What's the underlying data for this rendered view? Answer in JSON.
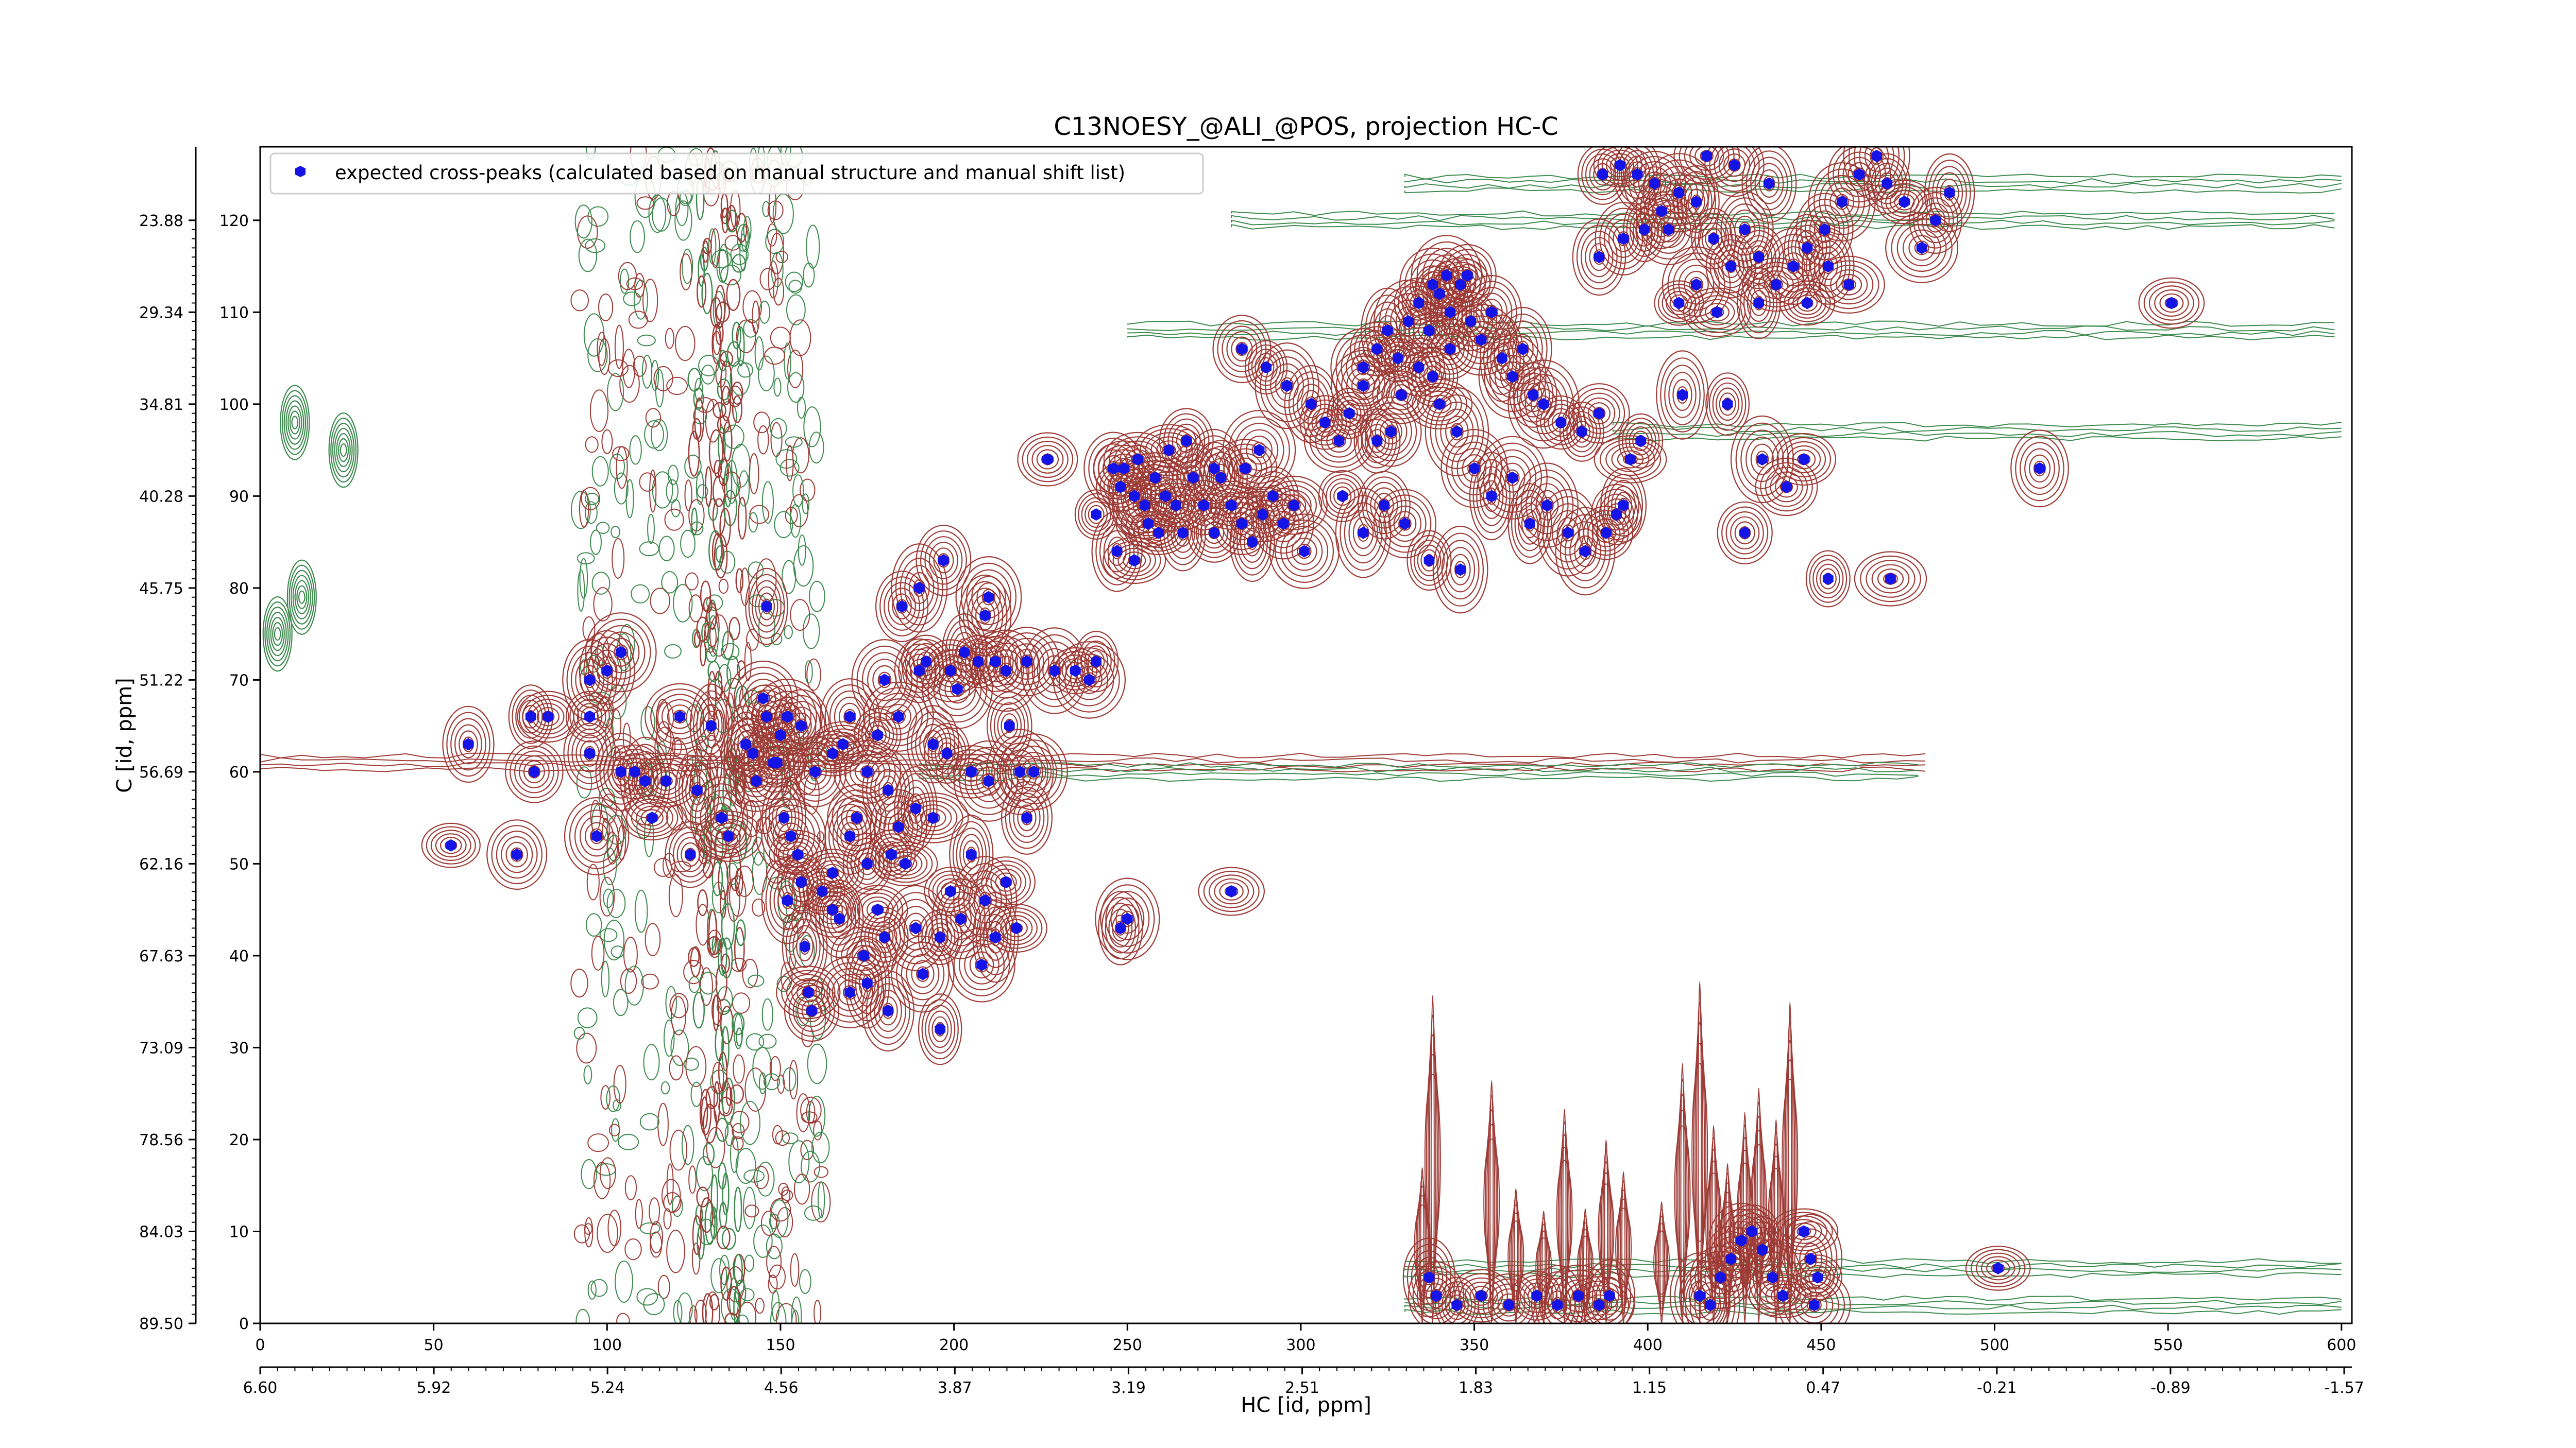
{
  "colors": {
    "positive_contours": "#9e3b36",
    "negative_contours": "#3d8a4e",
    "peaks": "#1414e6",
    "axes": "#000000",
    "background": "#ffffff"
  },
  "chart_data": {
    "type": "scatter",
    "title": "C13NOESY_@ALI_@POS, projection HC-C",
    "xlabel": "HC [id, ppm]",
    "ylabel": "C [id, ppm]",
    "xlim": [
      0,
      603
    ],
    "ylim": [
      0,
      128
    ],
    "grid": false,
    "legend_placement": "top-left",
    "x_ticks": [
      0,
      50,
      100,
      150,
      200,
      250,
      300,
      350,
      400,
      450,
      500,
      550,
      600
    ],
    "y_ticks": [
      0,
      10,
      20,
      30,
      40,
      50,
      60,
      70,
      80,
      90,
      100,
      110,
      120
    ],
    "x_ppm_ticks": [
      "6.60",
      "5.92",
      "5.24",
      "4.56",
      "3.87",
      "3.19",
      "2.51",
      "1.83",
      "1.15",
      "0.47",
      "-0.21",
      "-0.89",
      "-1.57"
    ],
    "y_ppm_ticks": [
      "89.50",
      "84.03",
      "78.56",
      "73.09",
      "67.63",
      "62.16",
      "56.69",
      "51.22",
      "45.75",
      "40.28",
      "34.81",
      "29.34",
      "23.88"
    ],
    "series": [
      {
        "name": "expected cross-peaks (calculated based on manual structure and manual shift list)",
        "marker": "hexagon",
        "points": [
          [
            55,
            52
          ],
          [
            74,
            51
          ],
          [
            78,
            66
          ],
          [
            95,
            66
          ],
          [
            104,
            60
          ],
          [
            97,
            53
          ],
          [
            104,
            73
          ],
          [
            111,
            59
          ],
          [
            117,
            59
          ],
          [
            121,
            66
          ],
          [
            124,
            51
          ],
          [
            126,
            58
          ],
          [
            130,
            65
          ],
          [
            133,
            55
          ],
          [
            135,
            53
          ],
          [
            140,
            63
          ],
          [
            142,
            62
          ],
          [
            143,
            59
          ],
          [
            145,
            68
          ],
          [
            146,
            66
          ],
          [
            149,
            61
          ],
          [
            150,
            64
          ],
          [
            151,
            55
          ],
          [
            153,
            53
          ],
          [
            155,
            51
          ],
          [
            156,
            48
          ],
          [
            152,
            46
          ],
          [
            157,
            41
          ],
          [
            158,
            36
          ],
          [
            159,
            34
          ],
          [
            162,
            47
          ],
          [
            165,
            49
          ],
          [
            167,
            44
          ],
          [
            170,
            53
          ],
          [
            172,
            55
          ],
          [
            174,
            40
          ],
          [
            175,
            37
          ],
          [
            178,
            45
          ],
          [
            180,
            42
          ],
          [
            182,
            51
          ],
          [
            184,
            54
          ],
          [
            186,
            50
          ],
          [
            189,
            43
          ],
          [
            191,
            38
          ],
          [
            194,
            55
          ],
          [
            196,
            42
          ],
          [
            199,
            47
          ],
          [
            202,
            44
          ],
          [
            205,
            51
          ],
          [
            209,
            46
          ],
          [
            212,
            42
          ],
          [
            215,
            48
          ],
          [
            218,
            43
          ],
          [
            221,
            55
          ],
          [
            223,
            60
          ],
          [
            219,
            60
          ],
          [
            216,
            65
          ],
          [
            210,
            59
          ],
          [
            205,
            60
          ],
          [
            198,
            62
          ],
          [
            194,
            63
          ],
          [
            184,
            66
          ],
          [
            178,
            64
          ],
          [
            170,
            66
          ],
          [
            165,
            62
          ],
          [
            160,
            60
          ],
          [
            156,
            65
          ],
          [
            152,
            66
          ],
          [
            148,
            61
          ],
          [
            168,
            63
          ],
          [
            175,
            60
          ],
          [
            181,
            58
          ],
          [
            189,
            56
          ],
          [
            175,
            50
          ],
          [
            165,
            45
          ],
          [
            170,
            36
          ],
          [
            181,
            34
          ],
          [
            196,
            32
          ],
          [
            208,
            39
          ],
          [
            180,
            70
          ],
          [
            190,
            71
          ],
          [
            199,
            71
          ],
          [
            203,
            73
          ],
          [
            207,
            72
          ],
          [
            212,
            72
          ],
          [
            215,
            71
          ],
          [
            221,
            72
          ],
          [
            229,
            71
          ],
          [
            235,
            71
          ],
          [
            239,
            70
          ],
          [
            241,
            72
          ],
          [
            201,
            69
          ],
          [
            192,
            72
          ],
          [
            185,
            78
          ],
          [
            209,
            77
          ],
          [
            210,
            79
          ],
          [
            197,
            83
          ],
          [
            227,
            94
          ],
          [
            241,
            88
          ],
          [
            246,
            93
          ],
          [
            248,
            91
          ],
          [
            252,
            90
          ],
          [
            256,
            87
          ],
          [
            258,
            92
          ],
          [
            261,
            90
          ],
          [
            264,
            89
          ],
          [
            266,
            86
          ],
          [
            269,
            92
          ],
          [
            272,
            89
          ],
          [
            275,
            86
          ],
          [
            277,
            92
          ],
          [
            280,
            89
          ],
          [
            283,
            87
          ],
          [
            286,
            85
          ],
          [
            289,
            88
          ],
          [
            292,
            90
          ],
          [
            295,
            87
          ],
          [
            298,
            89
          ],
          [
            301,
            84
          ],
          [
            288,
            95
          ],
          [
            284,
            93
          ],
          [
            275,
            93
          ],
          [
            267,
            96
          ],
          [
            262,
            95
          ],
          [
            253,
            94
          ],
          [
            249,
            93
          ],
          [
            259,
            86
          ],
          [
            255,
            89
          ],
          [
            247,
            84
          ],
          [
            252,
            83
          ],
          [
            283,
            106
          ],
          [
            290,
            104
          ],
          [
            296,
            102
          ],
          [
            303,
            100
          ],
          [
            307,
            98
          ],
          [
            311,
            96
          ],
          [
            314,
            99
          ],
          [
            318,
            104
          ],
          [
            322,
            106
          ],
          [
            325,
            108
          ],
          [
            328,
            105
          ],
          [
            331,
            109
          ],
          [
            334,
            111
          ],
          [
            337,
            108
          ],
          [
            340,
            112
          ],
          [
            343,
            110
          ],
          [
            346,
            113
          ],
          [
            349,
            109
          ],
          [
            352,
            107
          ],
          [
            355,
            110
          ],
          [
            358,
            105
          ],
          [
            361,
            103
          ],
          [
            364,
            106
          ],
          [
            367,
            101
          ],
          [
            370,
            100
          ],
          [
            375,
            98
          ],
          [
            381,
            97
          ],
          [
            386,
            99
          ],
          [
            334,
            104
          ],
          [
            329,
            101
          ],
          [
            326,
            97
          ],
          [
            322,
            96
          ],
          [
            318,
            102
          ],
          [
            340,
            100
          ],
          [
            345,
            97
          ],
          [
            350,
            93
          ],
          [
            355,
            90
          ],
          [
            361,
            92
          ],
          [
            366,
            87
          ],
          [
            371,
            89
          ],
          [
            377,
            86
          ],
          [
            382,
            84
          ],
          [
            388,
            86
          ],
          [
            391,
            88
          ],
          [
            393,
            89
          ],
          [
            346,
            82
          ],
          [
            337,
            83
          ],
          [
            330,
            87
          ],
          [
            324,
            89
          ],
          [
            318,
            86
          ],
          [
            312,
            90
          ],
          [
            338,
            113
          ],
          [
            342,
            114
          ],
          [
            348,
            114
          ],
          [
            343,
            106
          ],
          [
            338,
            103
          ],
          [
            386,
            116
          ],
          [
            393,
            118
          ],
          [
            399,
            119
          ],
          [
            404,
            121
          ],
          [
            409,
            123
          ],
          [
            414,
            122
          ],
          [
            419,
            118
          ],
          [
            424,
            115
          ],
          [
            428,
            119
          ],
          [
            432,
            116
          ],
          [
            437,
            113
          ],
          [
            442,
            115
          ],
          [
            446,
            117
          ],
          [
            451,
            119
          ],
          [
            456,
            122
          ],
          [
            461,
            125
          ],
          [
            466,
            127
          ],
          [
            469,
            124
          ],
          [
            474,
            122
          ],
          [
            479,
            117
          ],
          [
            483,
            120
          ],
          [
            487,
            123
          ],
          [
            409,
            111
          ],
          [
            414,
            113
          ],
          [
            420,
            110
          ],
          [
            432,
            111
          ],
          [
            446,
            111
          ],
          [
            458,
            113
          ],
          [
            406,
            119
          ],
          [
            402,
            124
          ],
          [
            397,
            125
          ],
          [
            392,
            126
          ],
          [
            387,
            125
          ],
          [
            452,
            115
          ],
          [
            435,
            124
          ],
          [
            425,
            126
          ],
          [
            417,
            127
          ],
          [
            395,
            94
          ],
          [
            398,
            96
          ],
          [
            410,
            101
          ],
          [
            423,
            100
          ],
          [
            428,
            86
          ],
          [
            440,
            91
          ],
          [
            445,
            94
          ],
          [
            433,
            94
          ],
          [
            95,
            62
          ],
          [
            83,
            66
          ],
          [
            79,
            60
          ],
          [
            60,
            63
          ],
          [
            100,
            71
          ],
          [
            113,
            55
          ],
          [
            95,
            70
          ],
          [
            108,
            60
          ],
          [
            452,
            81
          ],
          [
            470,
            81
          ],
          [
            513,
            93
          ],
          [
            551,
            111
          ],
          [
            280,
            47
          ],
          [
            250,
            44
          ],
          [
            248,
            43
          ],
          [
            146,
            78
          ],
          [
            190,
            80
          ],
          [
            337,
            5
          ],
          [
            339,
            3
          ],
          [
            345,
            2
          ],
          [
            352,
            3
          ],
          [
            360,
            2
          ],
          [
            368,
            3
          ],
          [
            374,
            2
          ],
          [
            380,
            3
          ],
          [
            386,
            2
          ],
          [
            389,
            3
          ],
          [
            415,
            3
          ],
          [
            418,
            2
          ],
          [
            421,
            5
          ],
          [
            424,
            7
          ],
          [
            427,
            9
          ],
          [
            430,
            10
          ],
          [
            433,
            8
          ],
          [
            436,
            5
          ],
          [
            439,
            3
          ],
          [
            445,
            10
          ],
          [
            447,
            7
          ],
          [
            449,
            5
          ],
          [
            448,
            2
          ],
          [
            501,
            6
          ]
        ]
      }
    ]
  }
}
